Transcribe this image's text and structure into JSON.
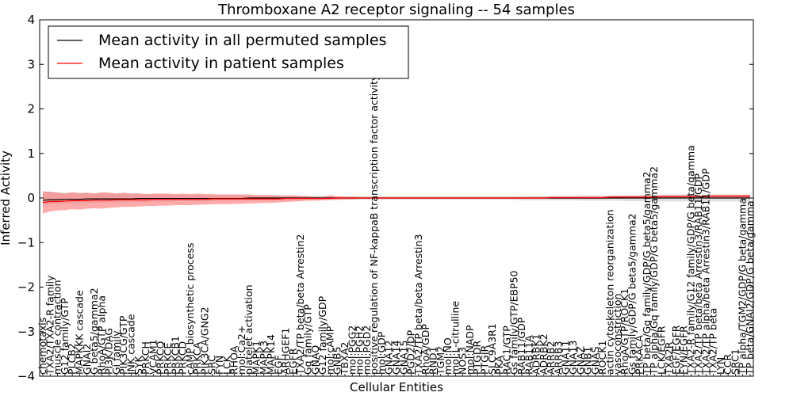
{
  "chart_data": {
    "type": "line",
    "title": "Thromboxane A2 receptor signaling -- 54 samples",
    "xlabel": "Cellular Entities",
    "ylabel": "Inferred Activity",
    "ylim": [
      -4,
      4
    ],
    "yticks": [
      4,
      3,
      2,
      1,
      0,
      -1,
      -2,
      -3,
      -4
    ],
    "ytick_labels": [
      "4",
      "3",
      "2",
      "1",
      "0",
      "−1",
      "−2",
      "−3",
      "−4"
    ],
    "grid": false,
    "legend_position": "top-left",
    "categories": [
      "chemotaxis",
      "TXA2/TXA2-R family",
      "muscle contraction",
      "G12 family/GTP",
      "PLCB2",
      "MAPKKK cascade",
      "GNAI2",
      "G beta5/gamma2",
      "RhoA/GTP alpha",
      "PI3K/DAG",
      "Gi family",
      "PIK3CG/GTP",
      "JNK cascade",
      "SYK",
      "PRKCH",
      "VCAM1",
      "PRKCQ",
      "PRKCE",
      "PRKCB1",
      "PRKCD",
      "cAMP biosynthetic process",
      "PRKCA",
      "PIK3CA/GNG2",
      "SRC",
      "FYN",
      "LCK",
      "RHOA",
      "mol:Ca2+",
      "platelet activation",
      "MAPK1",
      "MAPK3",
      "MAPK14",
      "EGF",
      "ARHGEF1",
      "EGFR",
      "TXA2/TP beta/beta Arrestin2",
      "Gq family/GTP",
      "GNAQ",
      "G12 family/GDP",
      "mol:cAMP",
      "GNB5",
      "TBXA2",
      "mol:PGG2",
      "mol:PGH2",
      "mol:PGD2",
      "positive regulation of NF-kappaB transcription factor activity",
      "mol:GDP",
      "GNA12",
      "GNA14",
      "GNA15",
      "PGD2/DP",
      "TXA2/TP beta/beta Arrestin3",
      "RhoA/GDP",
      "RND1",
      "TGM2",
      "mol:NO",
      "mol:L-citrulline",
      "NOS3",
      "mol:NADP",
      "PTGDR",
      "PTGIR",
      "SLC9A3R1",
      "PKA",
      "RAC1/GTP",
      "Gs family/GTP/EBP50",
      "RAB11/GDP",
      "RAB11A",
      "ADRBK1",
      "ADRBK2",
      "ARRB2",
      "ARRB3",
      "GNA11",
      "GNA13",
      "GNAZ",
      "GNB1",
      "GNAS",
      "ROCK1",
      "actin cytoskeleton reorganization",
      "vasoconstriction",
      "RhoA/GTP/ROCK1",
      "Gs family/GDP/G beta5/gamma2",
      "PRKACA",
      "TP beta/Gq family/GDP/G beta5/gamma2",
      "TP alpha/Gq family/GDP/G beta5/gamma2",
      "LCK/EGFR",
      "TXA2R",
      "EGF/EGFR",
      "FYN/EGFR",
      "TXA2-R family/G12 family/GDP/G beta/gamma",
      "TXA2/TP beta/beta Arrestin3/RAB11/GDP",
      "TXA2/TP alpha/beta Arrestin3/RAB11/GDP",
      "TXA2/TP beta",
      "LYN",
      "CCR",
      "SRC1",
      "TP alpha/TGM2/GDP/G beta/gamma",
      "TP beta/GNAI2/GDP/G beta/gamma"
    ],
    "series": [
      {
        "name": "Mean activity in all permuted samples",
        "color": "#000000",
        "values": [
          -0.05,
          -0.04,
          -0.04,
          -0.03,
          -0.03,
          -0.03,
          -0.02,
          -0.02,
          -0.02,
          -0.02,
          -0.02,
          -0.02,
          -0.02,
          -0.01,
          -0.01,
          -0.01,
          -0.01,
          -0.01,
          -0.01,
          -0.01,
          -0.01,
          -0.01,
          -0.01,
          -0.01,
          -0.01,
          -0.01,
          -0.01,
          -0.01,
          0.0,
          0.0,
          0.0,
          0.0,
          0.0,
          0.0,
          0.0,
          0.0,
          0.0,
          0.0,
          0.0,
          0.0,
          0.0,
          0.0,
          0.0,
          0.0,
          0.0,
          0.0,
          0.0,
          0.0,
          0.0,
          0.0,
          0.0,
          0.0,
          0.0,
          0.0,
          0.0,
          0.0,
          0.0,
          0.0,
          0.0,
          0.0,
          0.0,
          0.0,
          0.0,
          0.0,
          0.0,
          0.0,
          0.0,
          0.0,
          0.0,
          0.0,
          0.0,
          0.0,
          0.0,
          0.0,
          0.0,
          0.0,
          0.0,
          0.0,
          0.0,
          0.0,
          0.0,
          0.0,
          0.0,
          0.0,
          0.0,
          0.0,
          0.0,
          0.0,
          0.0,
          0.0,
          0.0,
          0.0,
          0.0,
          0.0,
          0.0,
          0.0,
          0.0
        ],
        "band_low": [
          -0.15,
          -0.14,
          -0.13,
          -0.12,
          -0.12,
          -0.11,
          -0.11,
          -0.11,
          -0.1,
          -0.1,
          -0.1,
          -0.1,
          -0.09,
          -0.09,
          -0.09,
          -0.08,
          -0.08,
          -0.08,
          -0.08,
          -0.07,
          -0.07,
          -0.07,
          -0.07,
          -0.07,
          -0.06,
          -0.06,
          -0.06,
          -0.06,
          -0.06,
          -0.05,
          -0.05,
          -0.05,
          -0.05,
          -0.05,
          -0.05,
          -0.05,
          -0.05,
          -0.05,
          -0.05,
          -0.05,
          -0.04,
          -0.04,
          -0.04,
          -0.04,
          -0.04,
          -0.04,
          -0.04,
          -0.04,
          -0.04,
          -0.04,
          -0.04,
          -0.04,
          -0.04,
          -0.04,
          -0.04,
          -0.04,
          -0.04,
          -0.04,
          -0.04,
          -0.04,
          -0.04,
          -0.04,
          -0.04,
          -0.04,
          -0.04,
          -0.05,
          -0.05,
          -0.05,
          -0.05,
          -0.05,
          -0.05,
          -0.05,
          -0.05,
          -0.06,
          -0.06,
          -0.06,
          -0.06,
          -0.06,
          -0.06,
          -0.07,
          -0.07,
          -0.07,
          -0.07,
          -0.07,
          -0.08,
          -0.08,
          -0.08,
          -0.08,
          -0.08,
          -0.08,
          -0.08,
          -0.08,
          -0.08,
          -0.08,
          -0.08,
          -0.08,
          -0.08
        ],
        "band_high": [
          0.15,
          0.14,
          0.13,
          0.12,
          0.12,
          0.11,
          0.11,
          0.11,
          0.1,
          0.1,
          0.1,
          0.1,
          0.09,
          0.09,
          0.09,
          0.08,
          0.08,
          0.08,
          0.08,
          0.07,
          0.07,
          0.07,
          0.07,
          0.07,
          0.06,
          0.06,
          0.06,
          0.06,
          0.06,
          0.05,
          0.05,
          0.05,
          0.05,
          0.05,
          0.05,
          0.05,
          0.05,
          0.05,
          0.05,
          0.05,
          0.04,
          0.04,
          0.04,
          0.04,
          0.04,
          0.04,
          0.04,
          0.04,
          0.04,
          0.04,
          0.04,
          0.04,
          0.04,
          0.04,
          0.04,
          0.04,
          0.04,
          0.04,
          0.04,
          0.04,
          0.04,
          0.04,
          0.04,
          0.04,
          0.04,
          0.05,
          0.05,
          0.05,
          0.05,
          0.05,
          0.05,
          0.05,
          0.05,
          0.06,
          0.06,
          0.06,
          0.06,
          0.06,
          0.06,
          0.07,
          0.07,
          0.07,
          0.07,
          0.07,
          0.08,
          0.08,
          0.08,
          0.08,
          0.08,
          0.08,
          0.08,
          0.08,
          0.08,
          0.08,
          0.08,
          0.08,
          0.08
        ]
      },
      {
        "name": "Mean activity in patient samples",
        "color": "#ff0000",
        "values": [
          -0.1,
          -0.08,
          -0.08,
          -0.07,
          -0.06,
          -0.06,
          -0.06,
          -0.05,
          -0.05,
          -0.05,
          -0.04,
          -0.04,
          -0.04,
          -0.04,
          -0.04,
          -0.03,
          -0.03,
          -0.03,
          -0.03,
          -0.03,
          -0.03,
          -0.03,
          -0.03,
          -0.02,
          -0.02,
          -0.02,
          -0.02,
          -0.02,
          -0.02,
          -0.02,
          -0.02,
          -0.02,
          -0.02,
          -0.01,
          -0.01,
          -0.01,
          -0.01,
          -0.01,
          -0.01,
          -0.01,
          0.0,
          0.0,
          0.0,
          0.0,
          0.0,
          0.0,
          0.0,
          0.0,
          0.0,
          0.0,
          0.0,
          0.0,
          0.0,
          0.0,
          0.0,
          0.0,
          0.0,
          0.0,
          0.0,
          0.0,
          0.0,
          0.0,
          0.0,
          0.0,
          0.0,
          0.0,
          0.0,
          0.0,
          0.0,
          0.01,
          0.01,
          0.01,
          0.01,
          0.01,
          0.01,
          0.01,
          0.01,
          0.02,
          0.02,
          0.02,
          0.02,
          0.02,
          0.02,
          0.02,
          0.03,
          0.03,
          0.03,
          0.03,
          0.03,
          0.03,
          0.03,
          0.04,
          0.04,
          0.04,
          0.04,
          0.04,
          0.04
        ],
        "band_low": [
          -0.35,
          -0.3,
          -0.28,
          -0.27,
          -0.25,
          -0.26,
          -0.24,
          -0.23,
          -0.24,
          -0.22,
          -0.21,
          -0.2,
          -0.2,
          -0.19,
          -0.18,
          -0.18,
          -0.17,
          -0.17,
          -0.16,
          -0.16,
          -0.16,
          -0.15,
          -0.15,
          -0.14,
          -0.14,
          -0.14,
          -0.13,
          -0.13,
          -0.12,
          -0.12,
          -0.11,
          -0.11,
          -0.1,
          -0.09,
          -0.08,
          -0.07,
          -0.06,
          -0.06,
          -0.05,
          -0.04,
          -0.04,
          -0.03,
          -0.03,
          -0.02,
          -0.02,
          -0.02,
          -0.02,
          -0.02,
          -0.02,
          -0.02,
          -0.02,
          -0.02,
          -0.02,
          -0.02,
          -0.02,
          -0.02,
          -0.02,
          -0.02,
          -0.02,
          -0.02,
          -0.02,
          -0.02,
          -0.02,
          -0.02,
          -0.02,
          -0.02,
          -0.02,
          -0.02,
          -0.02,
          -0.02,
          -0.02,
          -0.02,
          -0.02,
          -0.02,
          -0.02,
          -0.02,
          -0.02,
          -0.01,
          -0.01,
          -0.01,
          -0.01,
          -0.01,
          -0.01,
          -0.01,
          0.0,
          0.0,
          0.0,
          0.0,
          0.0,
          0.0,
          0.0,
          0.01,
          0.01,
          0.01,
          0.01,
          0.01,
          0.01
        ],
        "band_high": [
          0.15,
          0.14,
          0.12,
          0.1,
          0.13,
          0.11,
          0.12,
          0.1,
          0.13,
          0.12,
          0.1,
          0.12,
          0.1,
          0.11,
          0.09,
          0.1,
          0.1,
          0.1,
          0.09,
          0.1,
          0.09,
          0.1,
          0.09,
          0.09,
          0.08,
          0.08,
          0.08,
          0.08,
          0.08,
          0.07,
          0.07,
          0.07,
          0.06,
          0.06,
          0.06,
          0.05,
          0.04,
          0.03,
          0.03,
          0.06,
          0.04,
          0.03,
          0.03,
          0.02,
          0.02,
          0.02,
          0.02,
          0.02,
          0.02,
          0.02,
          0.02,
          0.02,
          0.02,
          0.02,
          0.02,
          0.02,
          0.02,
          0.02,
          0.02,
          0.02,
          0.02,
          0.02,
          0.02,
          0.02,
          0.02,
          0.02,
          0.02,
          0.02,
          0.02,
          0.03,
          0.03,
          0.03,
          0.03,
          0.03,
          0.03,
          0.03,
          0.03,
          0.04,
          0.04,
          0.04,
          0.04,
          0.04,
          0.05,
          0.05,
          0.06,
          0.06,
          0.06,
          0.06,
          0.06,
          0.06,
          0.06,
          0.07,
          0.07,
          0.07,
          0.07,
          0.07,
          0.07
        ]
      }
    ],
    "band_colors": {
      "permuted": "#cccccc",
      "patient": "#ff6666"
    }
  }
}
